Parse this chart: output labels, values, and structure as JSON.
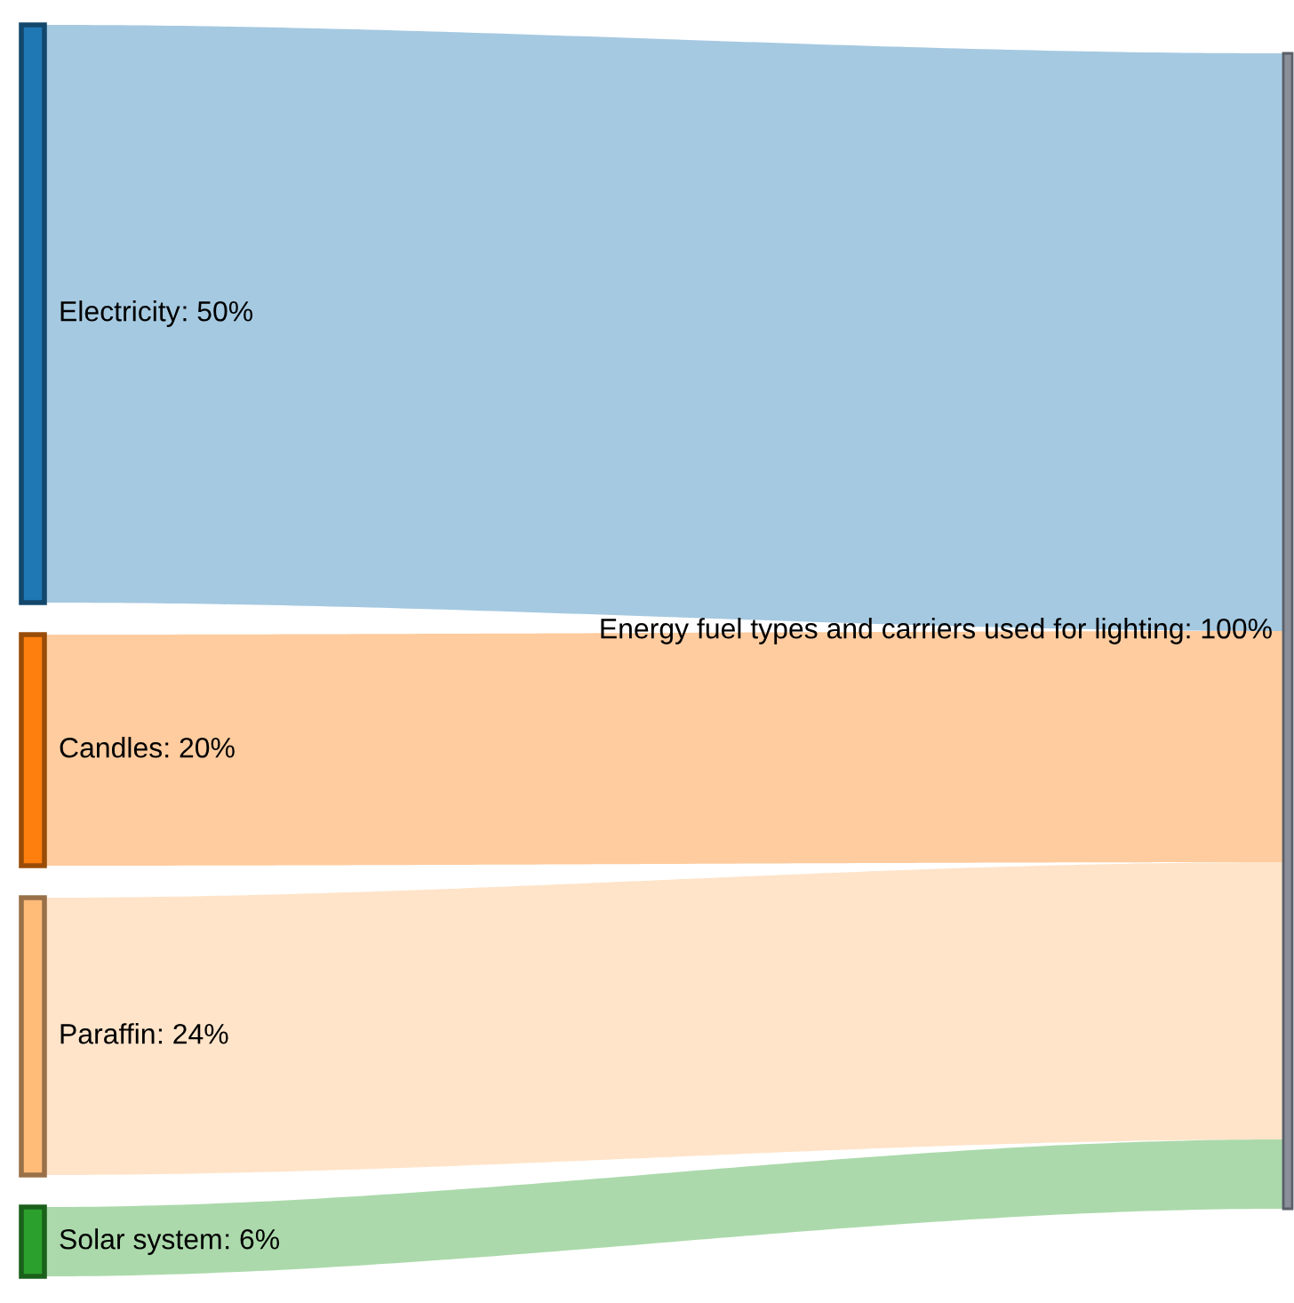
{
  "chart_data": {
    "type": "other",
    "categories": [
      "Electricity",
      "Candles",
      "Paraffin",
      "Solar system"
    ],
    "values": [
      50,
      20,
      24,
      6
    ],
    "value_labels": [
      ": 50%",
      ": 20%",
      ": 24%",
      ": 6%"
    ],
    "colors": [
      "#1f77b4",
      "#ff7f0e",
      "#ffbb78",
      "#2ca02c"
    ],
    "annotations": [
      "Energy fuel types and carriers used for lighting: 100%"
    ]
  }
}
